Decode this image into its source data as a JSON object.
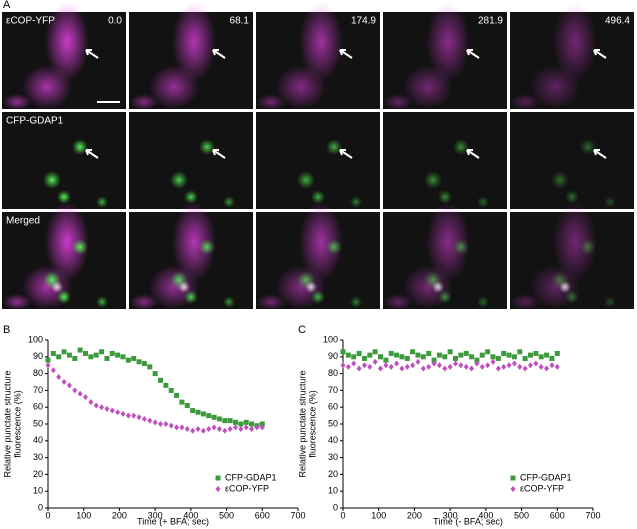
{
  "panel_a": {
    "label": "A",
    "channels": [
      "εCOP-YFP",
      "CFP-GDAP1",
      "Merged"
    ],
    "times": [
      "0.0",
      "68.1",
      "174.9",
      "281.9",
      "496.4"
    ]
  },
  "chart_data": [
    {
      "type": "scatter",
      "panel": "B",
      "xlabel": "Time (+ BFA; sec)",
      "ylabel": [
        "Relative punctate structure",
        "fluorescence (%)"
      ],
      "x": [
        0,
        15,
        30,
        45,
        60,
        75,
        90,
        105,
        120,
        135,
        150,
        165,
        180,
        195,
        210,
        225,
        240,
        255,
        270,
        285,
        300,
        315,
        330,
        345,
        360,
        375,
        390,
        405,
        420,
        435,
        450,
        465,
        480,
        495,
        510,
        525,
        540,
        555,
        570,
        585,
        600
      ],
      "series": [
        {
          "name": "CFP-GDAP1",
          "color": "#3c9a3c",
          "marker": "square",
          "values": [
            88,
            92,
            90,
            93,
            91,
            89,
            94,
            92,
            90,
            91,
            93,
            89,
            92,
            91,
            90,
            88,
            89,
            87,
            86,
            84,
            80,
            76,
            73,
            70,
            67,
            63,
            61,
            58,
            57,
            56,
            55,
            54,
            53,
            52,
            52,
            51,
            50,
            51,
            50,
            49,
            50
          ]
        },
        {
          "name": "εCOP-YFP",
          "color": "#c050c0",
          "marker": "diamond",
          "values": [
            85,
            82,
            78,
            75,
            73,
            70,
            68,
            66,
            63,
            61,
            60,
            59,
            58,
            57,
            56,
            55,
            55,
            54,
            53,
            52,
            51,
            50,
            50,
            49,
            48,
            48,
            47,
            46,
            47,
            46,
            47,
            48,
            47,
            46,
            47,
            48,
            47,
            48,
            47,
            48,
            48
          ]
        }
      ],
      "xlim": [
        0,
        700
      ],
      "xticks": [
        0,
        100,
        200,
        300,
        400,
        500,
        600,
        700
      ],
      "ylim": [
        0,
        100
      ],
      "yticks": [
        0,
        10,
        20,
        30,
        40,
        50,
        60,
        70,
        80,
        90,
        100
      ],
      "legend": "lower right"
    },
    {
      "type": "scatter",
      "panel": "C",
      "xlabel": "Time (- BFA; sec)",
      "ylabel": [
        "Relative punctate structure",
        "fluorescence (%)"
      ],
      "x": [
        0,
        15,
        30,
        45,
        60,
        75,
        90,
        105,
        120,
        135,
        150,
        165,
        180,
        195,
        210,
        225,
        240,
        255,
        270,
        285,
        300,
        315,
        330,
        345,
        360,
        375,
        390,
        405,
        420,
        435,
        450,
        465,
        480,
        495,
        510,
        525,
        540,
        555,
        570,
        585,
        600
      ],
      "series": [
        {
          "name": "CFP-GDAP1",
          "color": "#3c9a3c",
          "marker": "square",
          "values": [
            93,
            91,
            90,
            92,
            89,
            91,
            93,
            90,
            88,
            92,
            91,
            90,
            89,
            93,
            91,
            90,
            92,
            88,
            91,
            90,
            93,
            89,
            91,
            92,
            90,
            88,
            91,
            93,
            90,
            89,
            92,
            91,
            90,
            93,
            89,
            91,
            92,
            90,
            91,
            89,
            92
          ]
        },
        {
          "name": "εCOP-YFP",
          "color": "#c050c0",
          "marker": "diamond",
          "values": [
            85,
            84,
            86,
            83,
            85,
            84,
            87,
            83,
            85,
            84,
            86,
            83,
            84,
            85,
            87,
            83,
            84,
            86,
            85,
            83,
            84,
            86,
            85,
            84,
            83,
            86,
            84,
            85,
            87,
            83,
            84,
            85,
            86,
            84,
            83,
            85,
            86,
            84,
            83,
            85,
            84
          ]
        }
      ],
      "xlim": [
        0,
        700
      ],
      "xticks": [
        0,
        100,
        200,
        300,
        400,
        500,
        600,
        700
      ],
      "ylim": [
        0,
        100
      ],
      "yticks": [
        0,
        10,
        20,
        30,
        40,
        50,
        60,
        70,
        80,
        90,
        100
      ],
      "legend": "lower right"
    }
  ]
}
